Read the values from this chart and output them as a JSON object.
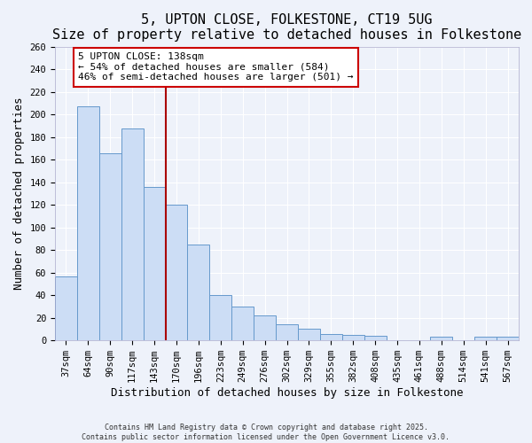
{
  "title": "5, UPTON CLOSE, FOLKESTONE, CT19 5UG",
  "subtitle": "Size of property relative to detached houses in Folkestone",
  "xlabel": "Distribution of detached houses by size in Folkestone",
  "ylabel": "Number of detached properties",
  "bar_labels": [
    "37sqm",
    "64sqm",
    "90sqm",
    "117sqm",
    "143sqm",
    "170sqm",
    "196sqm",
    "223sqm",
    "249sqm",
    "276sqm",
    "302sqm",
    "329sqm",
    "355sqm",
    "382sqm",
    "408sqm",
    "435sqm",
    "461sqm",
    "488sqm",
    "514sqm",
    "541sqm",
    "567sqm"
  ],
  "bar_values": [
    57,
    207,
    166,
    188,
    136,
    120,
    85,
    40,
    30,
    22,
    14,
    10,
    6,
    5,
    4,
    0,
    0,
    3,
    0,
    3,
    3
  ],
  "bar_color": "#ccddf5",
  "bar_edge_color": "#6699cc",
  "ylim": [
    0,
    260
  ],
  "yticks": [
    0,
    20,
    40,
    60,
    80,
    100,
    120,
    140,
    160,
    180,
    200,
    220,
    240,
    260
  ],
  "vline_x": 4.5,
  "vline_color": "#aa0000",
  "annotation_text": "5 UPTON CLOSE: 138sqm\n← 54% of detached houses are smaller (584)\n46% of semi-detached houses are larger (501) →",
  "annotation_box_color": "#ffffff",
  "annotation_box_edge": "#cc0000",
  "footer1": "Contains HM Land Registry data © Crown copyright and database right 2025.",
  "footer2": "Contains public sector information licensed under the Open Government Licence v3.0.",
  "background_color": "#eef2fa",
  "grid_color": "#ffffff",
  "title_fontsize": 11,
  "subtitle_fontsize": 9.5,
  "axis_label_fontsize": 9,
  "tick_fontsize": 7.5,
  "annotation_fontsize": 8
}
